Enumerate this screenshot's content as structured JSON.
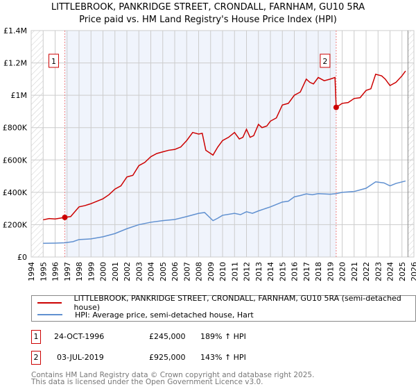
{
  "chart_data": {
    "type": "line",
    "title": "LITTLEBROOK, PANKRIDGE STREET, CRONDALL, FARNHAM, GU10 5RA",
    "subtitle": "Price paid vs. HM Land Registry's House Price Index (HPI)",
    "xlim": [
      1994,
      2026
    ],
    "ylim": [
      0,
      1400000
    ],
    "x_ticks": [
      "1994",
      "1995",
      "1996",
      "1997",
      "1998",
      "1999",
      "2000",
      "2001",
      "2002",
      "2003",
      "2004",
      "2005",
      "2006",
      "2007",
      "2008",
      "2009",
      "2010",
      "2011",
      "2012",
      "2013",
      "2014",
      "2015",
      "2016",
      "2017",
      "2018",
      "2019",
      "2020",
      "2021",
      "2022",
      "2023",
      "2024",
      "2025",
      "2026"
    ],
    "y_ticks": [
      {
        "v": 0,
        "label": "£0"
      },
      {
        "v": 200000,
        "label": "£200K"
      },
      {
        "v": 400000,
        "label": "£400K"
      },
      {
        "v": 600000,
        "label": "£600K"
      },
      {
        "v": 800000,
        "label": "£800K"
      },
      {
        "v": 1000000,
        "label": "£1M"
      },
      {
        "v": 1200000,
        "label": "£1.2M"
      },
      {
        "v": 1400000,
        "label": "£1.4M"
      }
    ],
    "series": [
      {
        "name": "LITTLEBROOK, PANKRIDGE STREET, CRONDALL, FARNHAM, GU10 5RA (semi-detached house)",
        "color": "#cc0000",
        "x": [
          1995,
          1995.5,
          1996,
          1996.8,
          1997.3,
          1998,
          1998.5,
          1999,
          1999.5,
          2000,
          2000.5,
          2001,
          2001.5,
          2002,
          2002.5,
          2003,
          2003.5,
          2004,
          2004.5,
          2005,
          2005.5,
          2006,
          2006.5,
          2007,
          2007.5,
          2008,
          2008.3,
          2008.6,
          2009.2,
          2009.6,
          2010,
          2010.5,
          2011,
          2011.4,
          2011.7,
          2012,
          2012.3,
          2012.6,
          2013,
          2013.3,
          2013.7,
          2014,
          2014.5,
          2015,
          2015.5,
          2016,
          2016.5,
          2017,
          2017.3,
          2017.6,
          2018,
          2018.5,
          2019,
          2019.4,
          2019.5,
          2020,
          2020.5,
          2021,
          2021.5,
          2022,
          2022.4,
          2022.8,
          2023.3,
          2023.6,
          2024,
          2024.5,
          2025,
          2025.3
        ],
        "y": [
          230000,
          238000,
          235000,
          245000,
          250000,
          310000,
          318000,
          330000,
          345000,
          360000,
          385000,
          420000,
          440000,
          495000,
          505000,
          565000,
          585000,
          620000,
          640000,
          650000,
          660000,
          665000,
          680000,
          720000,
          770000,
          760000,
          765000,
          660000,
          630000,
          680000,
          720000,
          740000,
          770000,
          730000,
          740000,
          790000,
          740000,
          750000,
          820000,
          800000,
          810000,
          840000,
          860000,
          940000,
          950000,
          1000000,
          1020000,
          1100000,
          1080000,
          1070000,
          1110000,
          1090000,
          1100000,
          1110000,
          925000,
          950000,
          955000,
          980000,
          985000,
          1030000,
          1040000,
          1130000,
          1120000,
          1100000,
          1060000,
          1080000,
          1120000,
          1150000
        ]
      },
      {
        "name": "HPI: Average price, semi-detached house, Hart",
        "color": "#6090d0",
        "x": [
          1995,
          1996,
          1996.8,
          1997.5,
          1998,
          1999,
          2000,
          2001,
          2002,
          2003,
          2004,
          2005,
          2006,
          2007,
          2008,
          2008.5,
          2009.2,
          2009.6,
          2010,
          2011,
          2011.5,
          2012,
          2012.5,
          2013,
          2014,
          2015,
          2015.5,
          2016,
          2016.5,
          2017,
          2017.5,
          2018,
          2019,
          2019.5,
          2020,
          2021,
          2021.5,
          2022,
          2022.8,
          2023.5,
          2024,
          2024.5,
          2025.3
        ],
        "y": [
          85000,
          86000,
          88000,
          95000,
          108000,
          112000,
          125000,
          145000,
          175000,
          200000,
          215000,
          225000,
          232000,
          250000,
          270000,
          275000,
          225000,
          240000,
          258000,
          270000,
          262000,
          280000,
          270000,
          285000,
          310000,
          340000,
          345000,
          372000,
          380000,
          390000,
          385000,
          392000,
          388000,
          392000,
          400000,
          405000,
          415000,
          425000,
          465000,
          458000,
          440000,
          455000,
          470000
        ]
      }
    ],
    "sales": [
      {
        "id": "1",
        "x": 1996.81,
        "y": 245000,
        "date": "24-OCT-1996",
        "price": "£245,000",
        "hpi": "189% ↑ HPI"
      },
      {
        "id": "2",
        "x": 2019.5,
        "y": 925000,
        "date": "03-JUL-2019",
        "price": "£925,000",
        "hpi": "143% ↑ HPI"
      }
    ],
    "legend_placement": "below"
  },
  "footer": {
    "line1": "Contains HM Land Registry data © Crown copyright and database right 2025.",
    "line2": "This data is licensed under the Open Government Licence v3.0."
  }
}
